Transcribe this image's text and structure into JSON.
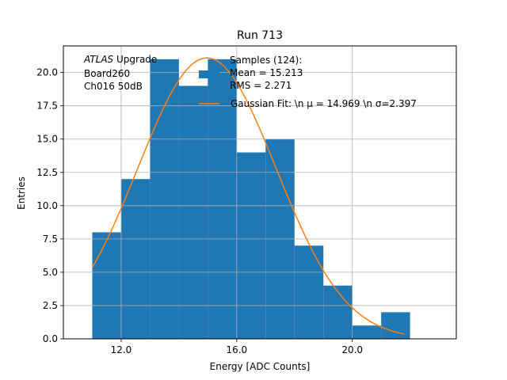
{
  "chart_data": {
    "type": "bar",
    "title": "Run 713",
    "xlabel": "Energy [ADC Counts]",
    "ylabel": "Entries",
    "xlim": [
      10,
      23.6
    ],
    "ylim": [
      0,
      22
    ],
    "xticks": [
      12.0,
      16.0,
      20.0
    ],
    "xtick_labels": [
      "12.0",
      "16.0",
      "20.0"
    ],
    "yticks": [
      0,
      2.5,
      5,
      7.5,
      10,
      12.5,
      15,
      17.5,
      20
    ],
    "ytick_labels": [
      "0.0",
      "2.5",
      "5.0",
      "7.5",
      "10.0",
      "12.5",
      "15.0",
      "17.5",
      "20.0"
    ],
    "grid": true,
    "bins": [
      {
        "x0": 11,
        "x1": 12,
        "count": 8
      },
      {
        "x0": 12,
        "x1": 13,
        "count": 12
      },
      {
        "x0": 13,
        "x1": 14,
        "count": 21
      },
      {
        "x0": 14,
        "x1": 15,
        "count": 19
      },
      {
        "x0": 15,
        "x1": 16,
        "count": 21
      },
      {
        "x0": 16,
        "x1": 17,
        "count": 14
      },
      {
        "x0": 17,
        "x1": 18,
        "count": 15
      },
      {
        "x0": 18,
        "x1": 19,
        "count": 7
      },
      {
        "x0": 19,
        "x1": 20,
        "count": 4
      },
      {
        "x0": 20,
        "x1": 21,
        "count": 1
      },
      {
        "x0": 21,
        "x1": 22,
        "count": 2
      }
    ],
    "fit": {
      "type": "gaussian",
      "mu": 14.969,
      "sigma": 2.397,
      "amplitude": 21.1,
      "x_range": [
        11,
        21.8
      ]
    },
    "colors": {
      "bars": "#1f77b4",
      "fit": "#ff7f0e",
      "grid": "#b0b0b0"
    },
    "annotation": {
      "italic": "ATLAS",
      "first_line_rest": " Upgrade",
      "lines": [
        " Board260",
        " Ch016 50dB"
      ]
    },
    "legend": {
      "placement": "top-right",
      "entries": [
        {
          "kind": "bar",
          "lines": [
            "Samples (124):",
            " Mean = 15.213",
            " RMS = 2.271"
          ]
        },
        {
          "kind": "line",
          "lines": [
            "Gaussian Fit: \\n μ = 14.969 \\n σ=2.397"
          ]
        }
      ]
    }
  }
}
